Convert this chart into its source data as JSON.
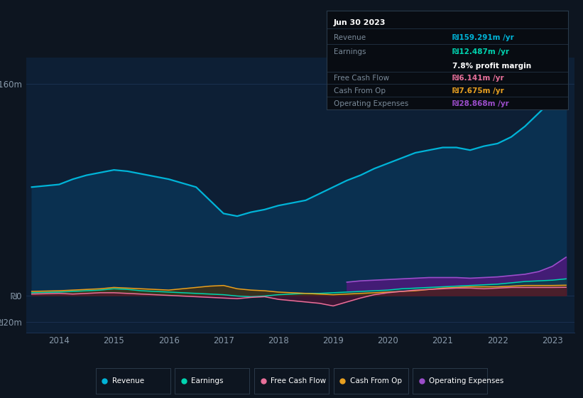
{
  "bg_color": "#0d1520",
  "chart_bg": "#0d1f35",
  "grid_color": "#1a3050",
  "years": [
    2013.5,
    2014.0,
    2014.25,
    2014.5,
    2014.75,
    2015.0,
    2015.25,
    2015.5,
    2015.75,
    2016.0,
    2016.25,
    2016.5,
    2016.75,
    2017.0,
    2017.25,
    2017.5,
    2017.75,
    2018.0,
    2018.25,
    2018.5,
    2018.75,
    2019.0,
    2019.25,
    2019.5,
    2019.75,
    2020.0,
    2020.25,
    2020.5,
    2020.75,
    2021.0,
    2021.25,
    2021.5,
    2021.75,
    2022.0,
    2022.25,
    2022.5,
    2022.75,
    2023.0,
    2023.25
  ],
  "revenue": [
    82,
    84,
    88,
    91,
    93,
    95,
    94,
    92,
    90,
    88,
    85,
    82,
    72,
    62,
    60,
    63,
    65,
    68,
    70,
    72,
    77,
    82,
    87,
    91,
    96,
    100,
    104,
    108,
    110,
    112,
    112,
    110,
    113,
    115,
    120,
    128,
    138,
    148,
    160
  ],
  "earnings": [
    2.0,
    2.5,
    3.0,
    3.5,
    4.0,
    5.0,
    4.5,
    3.5,
    3.0,
    2.5,
    2.0,
    1.5,
    1.0,
    0.5,
    -0.5,
    -1.0,
    -0.5,
    0.5,
    1.0,
    1.5,
    1.5,
    2.0,
    2.5,
    3.0,
    3.5,
    4.0,
    5.0,
    5.5,
    6.0,
    6.5,
    7.0,
    7.5,
    8.0,
    8.5,
    9.5,
    10.5,
    11.0,
    11.5,
    12.5
  ],
  "free_cash_flow": [
    1.0,
    1.5,
    1.0,
    1.5,
    2.0,
    2.0,
    1.5,
    1.0,
    0.5,
    0.0,
    -0.5,
    -1.0,
    -1.5,
    -2.0,
    -2.5,
    -1.5,
    -1.0,
    -3.0,
    -4.0,
    -5.0,
    -6.0,
    -8.0,
    -5.0,
    -2.0,
    0.5,
    2.0,
    3.0,
    4.0,
    4.5,
    5.0,
    5.5,
    5.5,
    5.0,
    5.5,
    6.0,
    6.0,
    6.0,
    6.0,
    6.1
  ],
  "cash_from_op": [
    3.0,
    3.5,
    4.0,
    4.5,
    5.0,
    6.0,
    5.5,
    5.0,
    4.5,
    4.0,
    5.0,
    6.0,
    7.0,
    7.5,
    5.0,
    4.0,
    3.5,
    2.5,
    2.0,
    1.5,
    1.0,
    0.5,
    1.0,
    1.5,
    2.0,
    2.5,
    3.0,
    3.5,
    4.5,
    5.5,
    6.0,
    6.5,
    6.5,
    6.5,
    7.0,
    7.5,
    7.5,
    7.5,
    7.7
  ],
  "operating_expenses": [
    0,
    0,
    0,
    0,
    0,
    0,
    0,
    0,
    0,
    0,
    0,
    0,
    0,
    0,
    0,
    0,
    0,
    0,
    0,
    0,
    0,
    0,
    10.0,
    11.0,
    11.5,
    12.0,
    12.5,
    13.0,
    13.5,
    13.5,
    13.5,
    13.0,
    13.5,
    14.0,
    15.0,
    16.0,
    18.0,
    22.0,
    28.9
  ],
  "tooltip_date": "Jun 30 2023",
  "tooltip_revenue": "₪159.291m",
  "tooltip_earnings": "₪12.487m",
  "tooltip_margin": "7.8%",
  "tooltip_fcf": "₪6.141m",
  "tooltip_cashop": "₪7.675m",
  "tooltip_opex": "₪28.868m",
  "revenue_color": "#00b4d8",
  "revenue_fill": "#0a3050",
  "earnings_color": "#00d4b0",
  "fcf_color": "#e8709a",
  "cashop_color": "#e8a020",
  "opex_color": "#9b4dca",
  "opex_fill": "#4a1a7a",
  "earnings_fill": "#004444",
  "fcf_fill": "#551133",
  "cashop_fill": "#553300",
  "ylim_top": 180,
  "ylim_bottom": -28,
  "ytick_160_pos": 160,
  "ytick_0_pos": 0,
  "ytick_neg20_pos": -20,
  "xlim_left": 2013.4,
  "xlim_right": 2023.4,
  "xtick_positions": [
    2014,
    2015,
    2016,
    2017,
    2018,
    2019,
    2020,
    2021,
    2022,
    2023
  ],
  "legend_items": [
    "Revenue",
    "Earnings",
    "Free Cash Flow",
    "Cash From Op",
    "Operating Expenses"
  ],
  "legend_colors": [
    "#00b4d8",
    "#00d4b0",
    "#e8709a",
    "#e8a020",
    "#9b4dca"
  ]
}
